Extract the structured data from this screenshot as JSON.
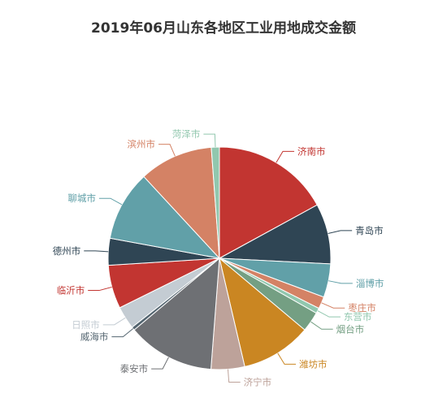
{
  "chart_data": {
    "type": "pie",
    "title": "2019年06月山东各地区工业用地成交金额",
    "series": [
      {
        "name": "济南市",
        "value": 17.5,
        "color": "#c23531"
      },
      {
        "name": "青岛市",
        "value": 9.0,
        "color": "#2f4554"
      },
      {
        "name": "淄博市",
        "value": 5.0,
        "color": "#61a0a8"
      },
      {
        "name": "枣庄市",
        "value": 1.8,
        "color": "#d48265"
      },
      {
        "name": "东营市",
        "value": 0.8,
        "color": "#91c7ae"
      },
      {
        "name": "烟台市",
        "value": 3.0,
        "color": "#749f83"
      },
      {
        "name": "潍坊市",
        "value": 10.5,
        "color": "#ca8622"
      },
      {
        "name": "济宁市",
        "value": 5.0,
        "color": "#bda29a"
      },
      {
        "name": "泰安市",
        "value": 13.0,
        "color": "#6e7074"
      },
      {
        "name": "威海市",
        "value": 0.5,
        "color": "#546570"
      },
      {
        "name": "日照市",
        "value": 3.4,
        "color": "#c4ccd3"
      },
      {
        "name": "临沂市",
        "value": 6.5,
        "color": "#c23531"
      },
      {
        "name": "德州市",
        "value": 4.0,
        "color": "#2f4554"
      },
      {
        "name": "聊城市",
        "value": 10.5,
        "color": "#61a0a8"
      },
      {
        "name": "滨州市",
        "value": 11.0,
        "color": "#d48265"
      },
      {
        "name": "菏泽市",
        "value": 1.2,
        "color": "#91c7ae"
      }
    ]
  }
}
